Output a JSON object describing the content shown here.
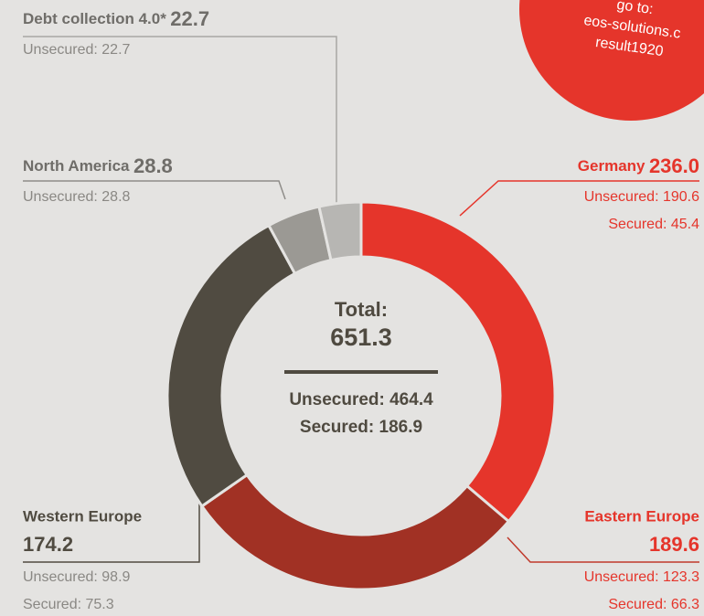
{
  "chart_data": {
    "type": "donut",
    "categories": [
      "Germany",
      "Eastern Europe",
      "Western Europe",
      "North America",
      "Debt collection 4.0*"
    ],
    "values": [
      236.0,
      189.6,
      174.2,
      28.8,
      22.7
    ],
    "value_labels": [
      "236.0",
      "189.6",
      "174.2",
      "28.8",
      "22.7"
    ],
    "colors": [
      "#e5352b",
      "#a13124",
      "#504b41",
      "#9b9994",
      "#b7b6b3"
    ],
    "details": [
      [
        "Unsecured: 190.6",
        "Secured: 45.4"
      ],
      [
        "Unsecured: 123.3",
        "Secured: 66.3"
      ],
      [
        "Unsecured: 98.9",
        "Secured: 75.3"
      ],
      [
        "Unsecured: 28.8"
      ],
      [
        "Unsecured: 22.7"
      ]
    ],
    "center": {
      "title": "Total:",
      "total": "651.3",
      "lines": [
        "Unsecured: 464.4",
        "Secured: 186.9"
      ]
    },
    "annotation": [
      "go to:",
      "eos-solutions.c",
      "result1920"
    ]
  }
}
